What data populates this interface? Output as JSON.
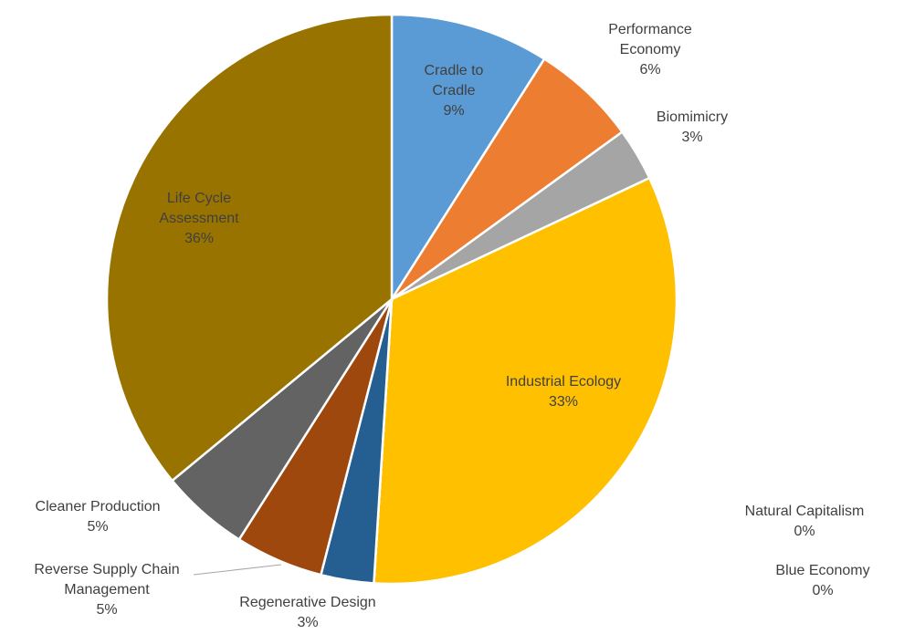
{
  "chart_data": {
    "type": "pie",
    "categories": [
      "Cradle to Cradle",
      "Performance Economy",
      "Biomimicry",
      "Industrial Ecology",
      "Natural Capitalism",
      "Blue Economy",
      "Regenerative Design",
      "Reverse Supply Chain Management",
      "Cleaner Production",
      "Life Cycle Assessment"
    ],
    "values": [
      9,
      6,
      3,
      33,
      0,
      0,
      3,
      5,
      5,
      36
    ],
    "value_labels": [
      "9%",
      "6%",
      "3%",
      "33%",
      "0%",
      "0%",
      "3%",
      "5%",
      "5%",
      "36%"
    ],
    "colors": [
      "#5b9bd5",
      "#ed7d31",
      "#a5a5a5",
      "#ffc000",
      "#4472c4",
      "#70ad47",
      "#255e91",
      "#9e480e",
      "#636363",
      "#997300"
    ]
  }
}
